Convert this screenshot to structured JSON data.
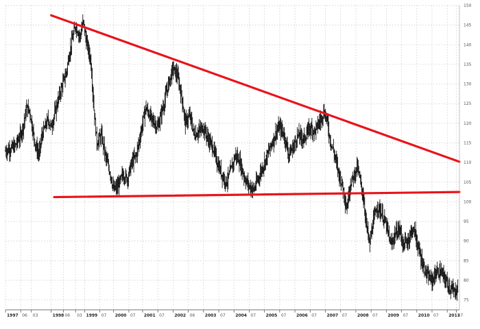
{
  "chart_data": {
    "type": "ohlc",
    "grid": true,
    "ylim": [
      72.5,
      150
    ],
    "yticks": [
      75,
      80,
      85,
      90,
      95,
      100,
      105,
      110,
      115,
      120,
      125,
      130,
      135,
      140,
      145,
      150
    ],
    "xlim": [
      1997.0,
      2011.9
    ],
    "xticks": [
      {
        "x": 1997.0,
        "label": "1997",
        "major": true
      },
      {
        "x": 1997.5,
        "label": "06",
        "major": false
      },
      {
        "x": 1997.85,
        "label": "03",
        "major": false
      },
      {
        "x": 1998.5,
        "label": "1998",
        "major": true
      },
      {
        "x": 1998.9,
        "label": "06",
        "major": false
      },
      {
        "x": 1999.3,
        "label": "03",
        "major": false
      },
      {
        "x": 1999.6,
        "label": "1999",
        "major": true
      },
      {
        "x": 2000.1,
        "label": "07",
        "major": false
      },
      {
        "x": 2000.55,
        "label": "2000",
        "major": true
      },
      {
        "x": 2001.05,
        "label": "07",
        "major": false
      },
      {
        "x": 2001.5,
        "label": "2001",
        "major": true
      },
      {
        "x": 2002.0,
        "label": "07",
        "major": false
      },
      {
        "x": 2002.5,
        "label": "2002",
        "major": true
      },
      {
        "x": 2003.0,
        "label": "06",
        "major": false
      },
      {
        "x": 2003.5,
        "label": "2003",
        "major": true
      },
      {
        "x": 2004.0,
        "label": "07",
        "major": false
      },
      {
        "x": 2004.5,
        "label": "2004",
        "major": true
      },
      {
        "x": 2005.0,
        "label": "07",
        "major": false
      },
      {
        "x": 2005.5,
        "label": "2005",
        "major": true
      },
      {
        "x": 2006.0,
        "label": "07",
        "major": false
      },
      {
        "x": 2006.5,
        "label": "2006",
        "major": true
      },
      {
        "x": 2007.0,
        "label": "07",
        "major": false
      },
      {
        "x": 2007.5,
        "label": "2007",
        "major": true
      },
      {
        "x": 2008.0,
        "label": "07",
        "major": false
      },
      {
        "x": 2008.5,
        "label": "2008",
        "major": true
      },
      {
        "x": 2009.0,
        "label": "07",
        "major": false
      },
      {
        "x": 2009.5,
        "label": "2009",
        "major": true
      },
      {
        "x": 2010.0,
        "label": "07",
        "major": false
      },
      {
        "x": 2010.5,
        "label": "2010",
        "major": true
      },
      {
        "x": 2011.0,
        "label": "07",
        "major": false
      },
      {
        "x": 2011.5,
        "label": "2011",
        "major": true
      },
      {
        "x": 2011.8,
        "label": "07",
        "major": false
      }
    ],
    "series_path": [
      [
        1997.0,
        113
      ],
      [
        1997.3,
        114
      ],
      [
        1997.5,
        117
      ],
      [
        1997.6,
        120
      ],
      [
        1997.7,
        124
      ],
      [
        1997.8,
        123
      ],
      [
        1997.9,
        118
      ],
      [
        1998.0,
        114
      ],
      [
        1998.1,
        112
      ],
      [
        1998.2,
        117
      ],
      [
        1998.3,
        119
      ],
      [
        1998.4,
        121
      ],
      [
        1998.5,
        119
      ],
      [
        1998.6,
        122
      ],
      [
        1998.8,
        128
      ],
      [
        1999.0,
        133
      ],
      [
        1999.1,
        138
      ],
      [
        1999.3,
        145
      ],
      [
        1999.45,
        142
      ],
      [
        1999.55,
        146
      ],
      [
        1999.65,
        141
      ],
      [
        1999.8,
        136
      ],
      [
        1999.9,
        124
      ],
      [
        2000.0,
        115
      ],
      [
        2000.15,
        117
      ],
      [
        2000.3,
        111
      ],
      [
        2000.45,
        107
      ],
      [
        2000.55,
        103
      ],
      [
        2000.7,
        104
      ],
      [
        2000.85,
        107
      ],
      [
        2001.0,
        106
      ],
      [
        2001.15,
        110
      ],
      [
        2001.3,
        112
      ],
      [
        2001.45,
        118
      ],
      [
        2001.6,
        124
      ],
      [
        2001.8,
        121
      ],
      [
        2002.0,
        119
      ],
      [
        2002.2,
        125
      ],
      [
        2002.35,
        130
      ],
      [
        2002.5,
        134
      ],
      [
        2002.65,
        132
      ],
      [
        2002.8,
        126
      ],
      [
        2002.9,
        120
      ],
      [
        2003.05,
        122
      ],
      [
        2003.2,
        117
      ],
      [
        2003.35,
        118
      ],
      [
        2003.5,
        119
      ],
      [
        2003.65,
        116
      ],
      [
        2003.8,
        114
      ],
      [
        2003.95,
        110
      ],
      [
        2004.1,
        107
      ],
      [
        2004.25,
        105
      ],
      [
        2004.4,
        108
      ],
      [
        2004.55,
        112
      ],
      [
        2004.7,
        110
      ],
      [
        2004.85,
        106
      ],
      [
        2005.0,
        104
      ],
      [
        2005.15,
        103
      ],
      [
        2005.3,
        106
      ],
      [
        2005.5,
        110
      ],
      [
        2005.7,
        114
      ],
      [
        2005.9,
        118
      ],
      [
        2006.0,
        119
      ],
      [
        2006.15,
        117
      ],
      [
        2006.3,
        112
      ],
      [
        2006.45,
        114
      ],
      [
        2006.6,
        117
      ],
      [
        2006.8,
        116
      ],
      [
        2007.0,
        119
      ],
      [
        2007.15,
        118
      ],
      [
        2007.35,
        121
      ],
      [
        2007.45,
        123
      ],
      [
        2007.55,
        121
      ],
      [
        2007.65,
        116
      ],
      [
        2007.8,
        112
      ],
      [
        2007.95,
        107
      ],
      [
        2008.1,
        103
      ],
      [
        2008.2,
        98
      ],
      [
        2008.3,
        104
      ],
      [
        2008.45,
        107
      ],
      [
        2008.55,
        109
      ],
      [
        2008.65,
        105
      ],
      [
        2008.75,
        101
      ],
      [
        2008.85,
        94
      ],
      [
        2008.95,
        89
      ],
      [
        2009.05,
        94
      ],
      [
        2009.2,
        99
      ],
      [
        2009.35,
        97
      ],
      [
        2009.5,
        94
      ],
      [
        2009.65,
        89
      ],
      [
        2009.8,
        92
      ],
      [
        2009.95,
        93
      ],
      [
        2010.05,
        89
      ],
      [
        2010.2,
        90
      ],
      [
        2010.35,
        93
      ],
      [
        2010.45,
        92
      ],
      [
        2010.55,
        88
      ],
      [
        2010.7,
        84
      ],
      [
        2010.85,
        81
      ],
      [
        2011.0,
        80
      ],
      [
        2011.15,
        82
      ],
      [
        2011.3,
        82
      ],
      [
        2011.45,
        80
      ],
      [
        2011.6,
        78
      ],
      [
        2011.75,
        77
      ],
      [
        2011.85,
        78
      ]
    ],
    "trendlines": [
      {
        "x1": 1998.5,
        "y1": 147.5,
        "x2": 2011.9,
        "y2": 110.2,
        "color": "#e8141b"
      },
      {
        "x1": 1998.6,
        "y1": 101.2,
        "x2": 2011.9,
        "y2": 102.5,
        "color": "#e8141b"
      }
    ]
  }
}
